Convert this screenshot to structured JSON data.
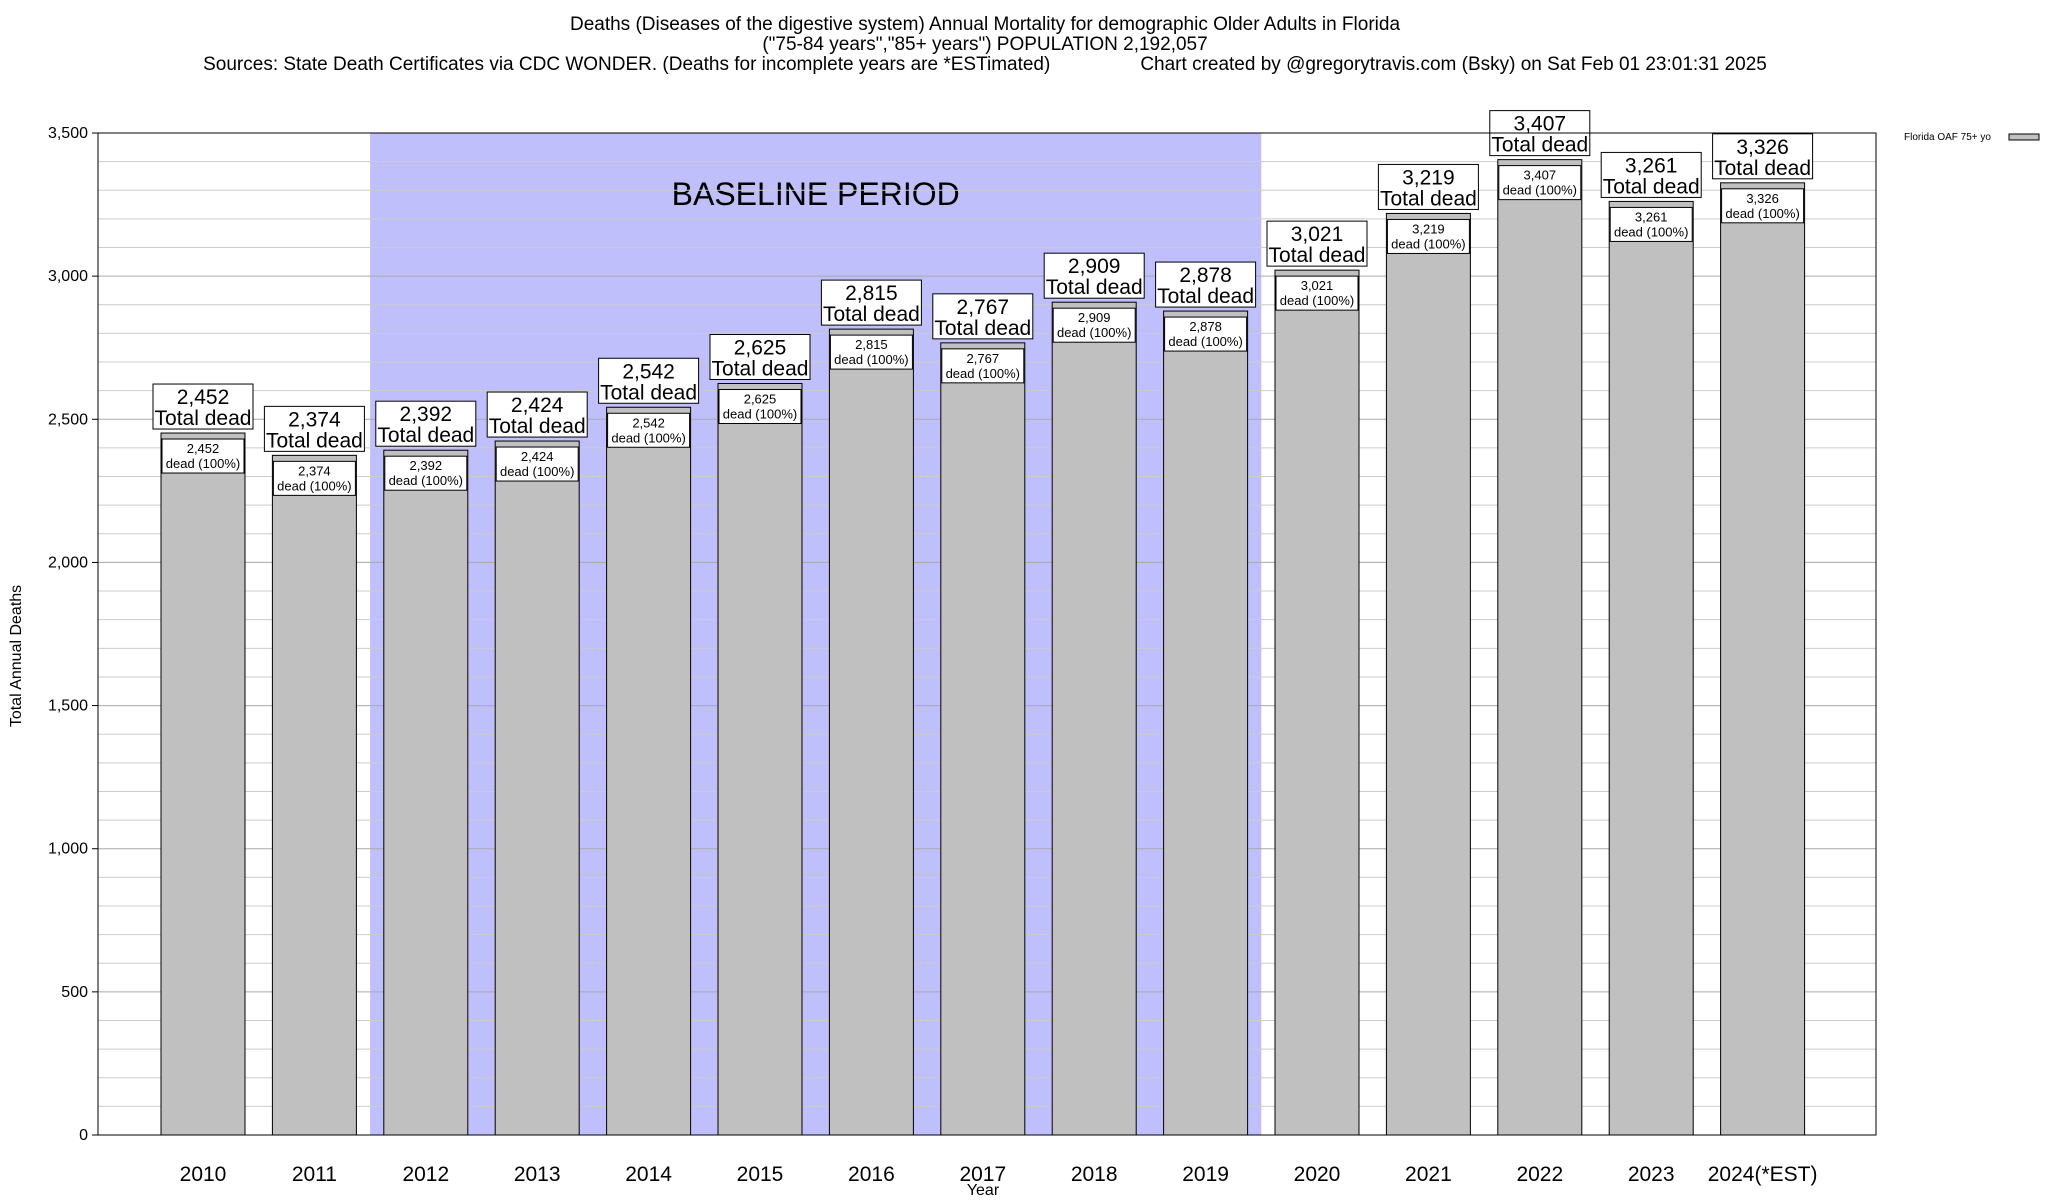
{
  "chart_data": {
    "type": "bar",
    "title": "Deaths (Diseases of the digestive system) Annual Mortality for demographic Older Adults in Florida",
    "subtitle": "(\"75-84 years\",\"85+ years\") POPULATION 2,192,057",
    "sources": "Sources: State Death Certificates via CDC WONDER. (Deaths for incomplete years are *ESTimated)",
    "credit": "Chart created by @gregorytravis.com (Bsky) on Sat Feb 01 23:01:31 2025",
    "xlabel": "Year",
    "ylabel": "Total Annual Deaths",
    "ylim": [
      0,
      3500
    ],
    "yticks": [
      0,
      500,
      1000,
      1500,
      2000,
      2500,
      3000,
      3500
    ],
    "ytick_labels": [
      "0",
      "500",
      "1,000",
      "1,500",
      "2,000",
      "2,500",
      "3,000",
      "3,500"
    ],
    "grid": true,
    "legend": {
      "position": "top-right",
      "entries": [
        "Florida OAF 75+ yo"
      ]
    },
    "categories": [
      "2010",
      "2011",
      "2012",
      "2013",
      "2014",
      "2015",
      "2016",
      "2017",
      "2018",
      "2019",
      "2020",
      "2021",
      "2022",
      "2023",
      "2024(*EST)"
    ],
    "series": [
      {
        "name": "Florida OAF 75+ yo",
        "values": [
          2452,
          2374,
          2392,
          2424,
          2542,
          2625,
          2815,
          2767,
          2909,
          2878,
          3021,
          3219,
          3407,
          3261,
          3326
        ]
      }
    ],
    "value_labels": [
      "2,452",
      "2,374",
      "2,392",
      "2,424",
      "2,542",
      "2,625",
      "2,815",
      "2,767",
      "2,909",
      "2,878",
      "3,021",
      "3,219",
      "3,407",
      "3,261",
      "3,326"
    ],
    "outer_label_text": "Total dead",
    "inner_label_text": "dead (100%)",
    "annotations": [
      {
        "text": "BASELINE PERIOD",
        "from_category": "2012",
        "to_category": "2019"
      }
    ],
    "colors": {
      "bar": "#c0c0c0",
      "baseline": "#bfbffc",
      "grid": "#cccccc"
    }
  }
}
